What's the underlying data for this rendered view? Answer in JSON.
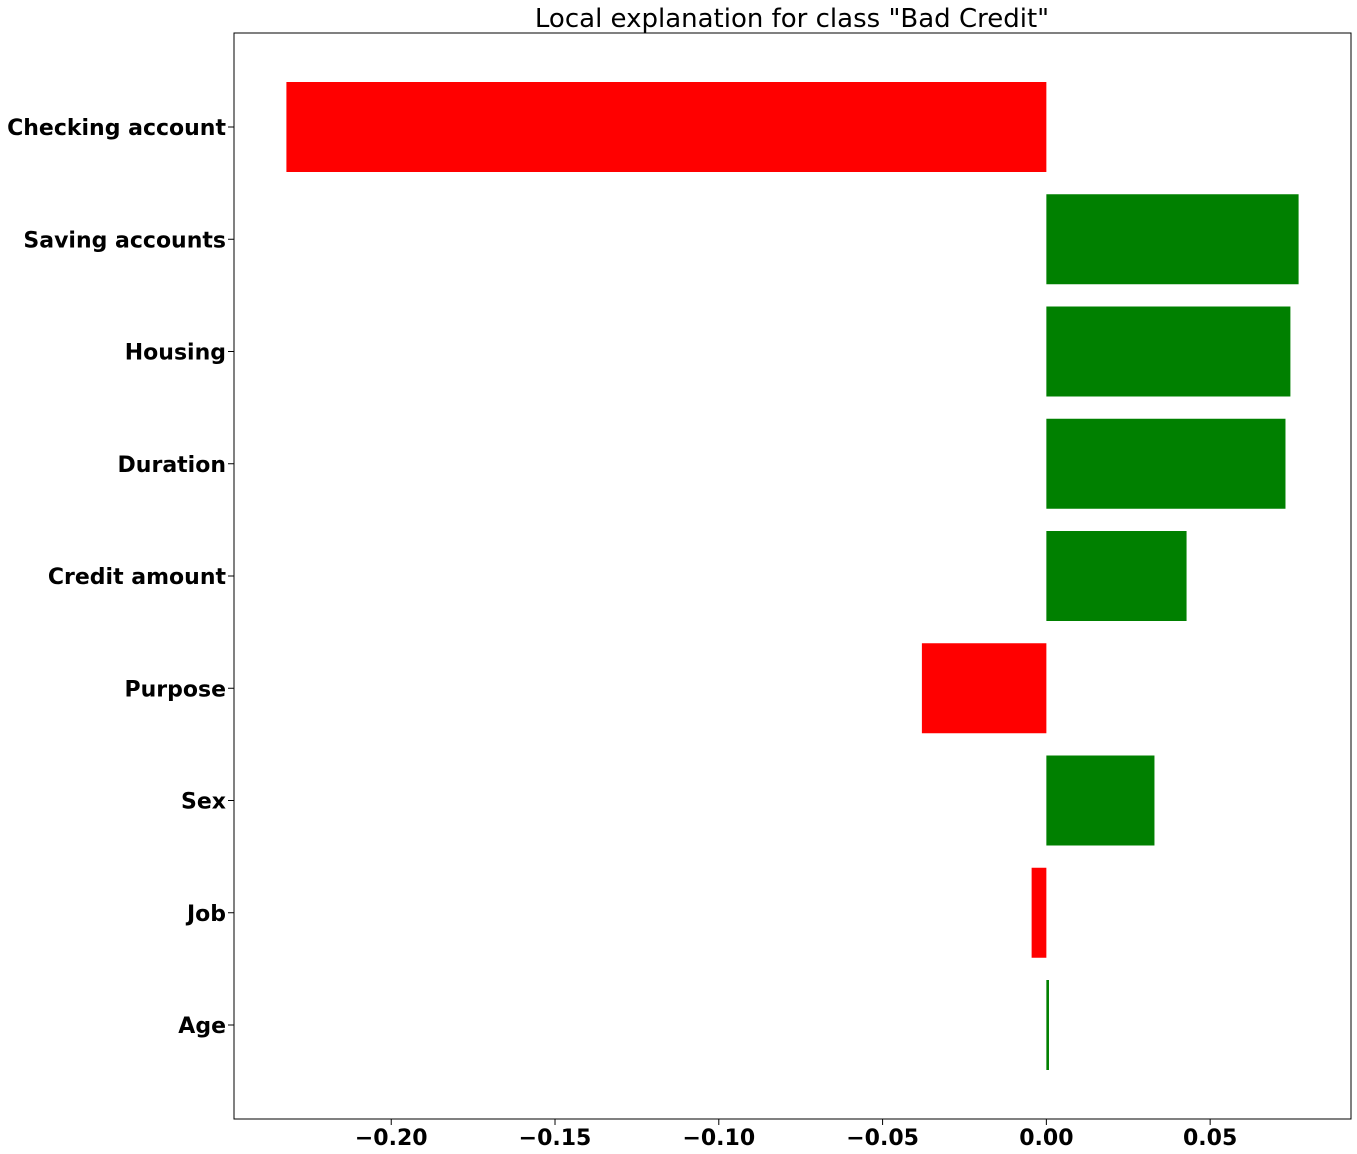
{
  "chart_data": {
    "type": "bar",
    "orientation": "horizontal",
    "title": "Local explanation for class \"Bad Credit\"",
    "xlabel": "",
    "ylabel": "",
    "categories": [
      "Checking account",
      "Saving accounts",
      "Housing",
      "Duration",
      "Credit amount",
      "Purpose",
      "Sex",
      "Job",
      "Age"
    ],
    "values": [
      -0.232,
      0.077,
      0.0745,
      0.073,
      0.0428,
      -0.038,
      0.033,
      -0.0045,
      0.0008
    ],
    "xlim": [
      -0.248,
      0.093
    ],
    "xticks": [
      -0.2,
      -0.15,
      -0.1,
      -0.05,
      0.0,
      0.05
    ],
    "xtick_labels": [
      "−0.20",
      "−0.15",
      "−0.10",
      "−0.05",
      "0.00",
      "0.05"
    ],
    "positive_color": "#008000",
    "negative_color": "#ff0000",
    "grid": false,
    "legend": "none"
  }
}
